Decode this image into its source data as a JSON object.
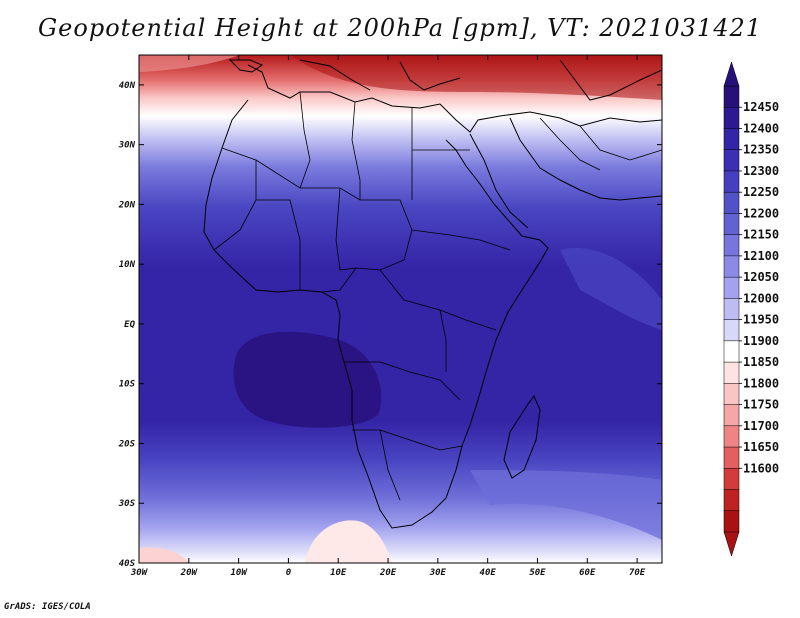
{
  "title": "Geopotential Height at 200hPa [gpm], VT: 2021031421",
  "credit": "GrADS: IGES/COLA",
  "map": {
    "lat_labels": [
      "40N",
      "30N",
      "20N",
      "10N",
      "EQ",
      "10S",
      "20S",
      "30S",
      "40S"
    ],
    "lon_labels": [
      "30W",
      "20W",
      "10W",
      "0",
      "10E",
      "20E",
      "30E",
      "40E",
      "50E",
      "60E",
      "70E"
    ]
  },
  "colorbar": {
    "labels": [
      "12450",
      "12400",
      "12350",
      "12300",
      "12250",
      "12200",
      "12150",
      "12100",
      "12050",
      "12000",
      "11950",
      "11900",
      "11850",
      "11800",
      "11750",
      "11700",
      "11650",
      "11600"
    ],
    "colors": [
      "#28107a",
      "#2d1a92",
      "#3424a6",
      "#3b30b4",
      "#4540bf",
      "#5252c8",
      "#6262d2",
      "#7676dd",
      "#8b8be6",
      "#a2a2ee",
      "#bdbdf4",
      "#d8d8f9",
      "#ffffff",
      "#ffe2e2",
      "#fcc5c5",
      "#f7a6a6",
      "#ef8484",
      "#e26060",
      "#d33c3c",
      "#bf2222",
      "#a81212"
    ],
    "top_arrow_color": "#28107a",
    "bottom_arrow_color": "#a81212"
  },
  "chart_data": {
    "type": "heatmap",
    "title": "Geopotential Height at 200hPa [gpm], VT: 2021031421",
    "variable": "Geopotential Height",
    "units": "gpm",
    "level": "200hPa",
    "valid_time": "2021031421",
    "lon_range": [
      -30,
      75
    ],
    "lat_range": [
      -40,
      45
    ],
    "color_levels": [
      11600,
      11650,
      11700,
      11750,
      11800,
      11850,
      11900,
      11950,
      12000,
      12050,
      12100,
      12150,
      12200,
      12250,
      12300,
      12350,
      12400,
      12450
    ],
    "zonal_profile": [
      {
        "lat": 45,
        "value": 11650
      },
      {
        "lat": 40,
        "value": 11880
      },
      {
        "lat": 35,
        "value": 12020
      },
      {
        "lat": 30,
        "value": 12200
      },
      {
        "lat": 25,
        "value": 12300
      },
      {
        "lat": 20,
        "value": 12350
      },
      {
        "lat": 10,
        "value": 12400
      },
      {
        "lat": 0,
        "value": 12400
      },
      {
        "lat": -10,
        "value": 12420
      },
      {
        "lat": -20,
        "value": 12380
      },
      {
        "lat": -25,
        "value": 12330
      },
      {
        "lat": -30,
        "value": 12250
      },
      {
        "lat": -35,
        "value": 12130
      },
      {
        "lat": -40,
        "value": 12000
      }
    ]
  }
}
